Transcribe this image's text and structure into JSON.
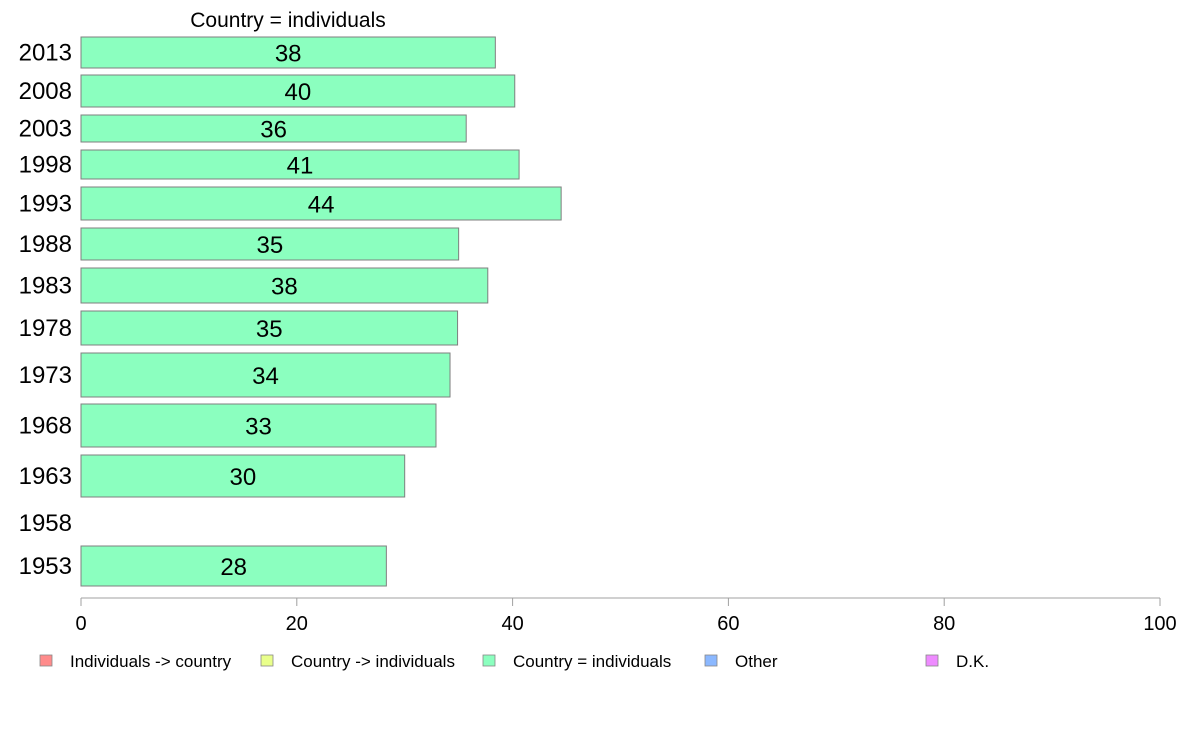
{
  "chart_data": {
    "type": "bar",
    "orientation": "horizontal",
    "title": "Country = individuals",
    "categories": [
      "2013",
      "2008",
      "2003",
      "1998",
      "1993",
      "1988",
      "1983",
      "1978",
      "1973",
      "1968",
      "1963",
      "1958",
      "1953"
    ],
    "series": [
      {
        "name": "Country = individuals",
        "values": [
          38,
          40,
          36,
          41,
          44,
          35,
          38,
          35,
          34,
          33,
          30,
          null,
          28
        ],
        "plot_values": [
          38.4,
          40.2,
          35.7,
          40.6,
          44.5,
          35.0,
          37.7,
          34.9,
          34.2,
          32.9,
          30.0,
          null,
          28.3
        ]
      }
    ],
    "xlim": [
      0,
      100
    ],
    "xticks": [
      "0",
      "20",
      "40",
      "60",
      "80",
      "100"
    ],
    "grid": false,
    "legend": {
      "placement": "bottom",
      "entries": [
        {
          "name": "Individuals -> country",
          "color": "#ff8b8b"
        },
        {
          "name": "Country -> individuals",
          "color": "#e9ff8b"
        },
        {
          "name": "Country = individuals",
          "color": "#8bffbf"
        },
        {
          "name": "Other",
          "color": "#8bb8ff"
        },
        {
          "name": "D.K.",
          "color": "#ee8bff"
        }
      ]
    },
    "bar_color": "#8bffbf"
  }
}
